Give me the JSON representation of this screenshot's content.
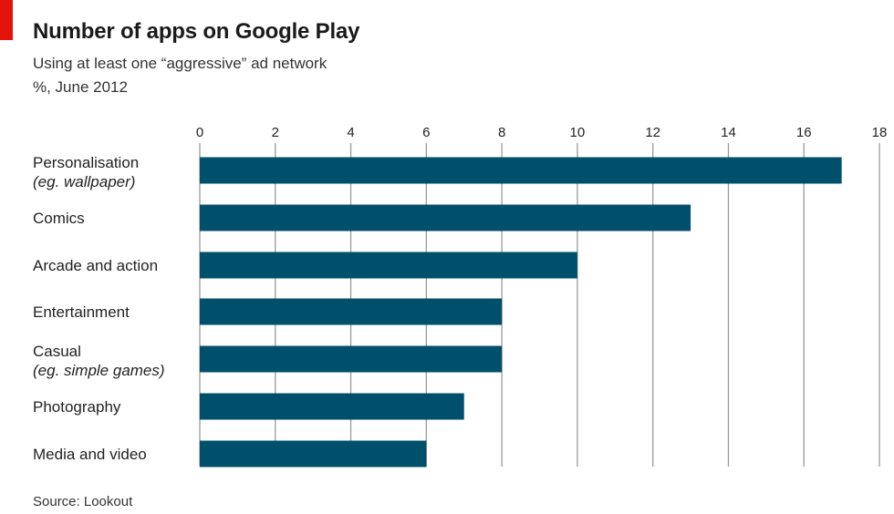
{
  "header": {
    "title": "Number of apps on Google Play",
    "subtitle": "Using at least one “aggressive” ad network",
    "unit_date": "%, June 2012"
  },
  "footer": {
    "source": "Source: Lookout"
  },
  "colors": {
    "bar": "#004f6b",
    "grid": "#9a9a9a",
    "accent": "#e3120b"
  },
  "chart_data": {
    "type": "bar",
    "orientation": "horizontal",
    "categories": [
      [
        "Personalisation",
        "(eg. wallpaper)"
      ],
      [
        "Comics"
      ],
      [
        "Arcade and action"
      ],
      [
        "Entertainment"
      ],
      [
        "Casual",
        "(eg. simple games)"
      ],
      [
        "Photography"
      ],
      [
        "Media and video"
      ]
    ],
    "values": [
      17,
      13,
      10,
      8,
      8,
      7,
      6
    ],
    "xlim": [
      0,
      18
    ],
    "xticks": [
      0,
      2,
      4,
      6,
      8,
      10,
      12,
      14,
      16,
      18
    ],
    "grid": "vertical",
    "xaxis_position": "top"
  }
}
